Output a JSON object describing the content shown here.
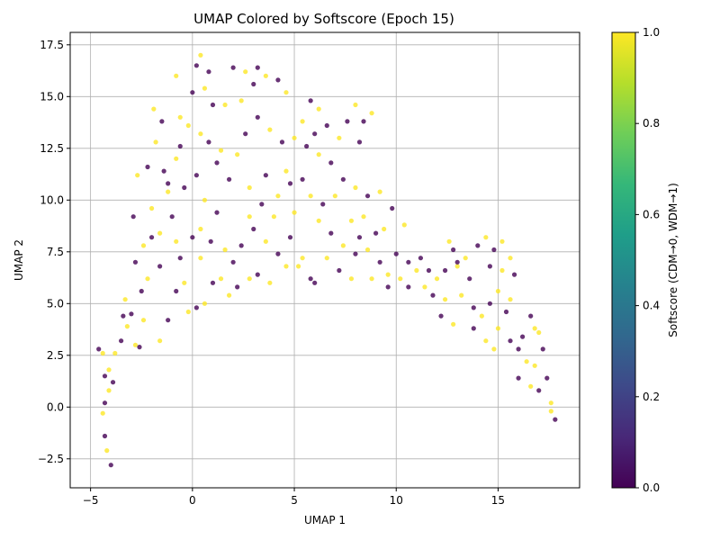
{
  "chart_data": {
    "type": "scatter",
    "title": "UMAP Colored by Softscore (Epoch 15)",
    "xlabel": "UMAP 1",
    "ylabel": "UMAP 2",
    "xlim": [
      -6,
      19
    ],
    "ylim": [
      -3.9,
      18.1
    ],
    "xticks": [
      -5,
      0,
      5,
      10,
      15
    ],
    "yticks": [
      -2.5,
      0.0,
      2.5,
      5.0,
      7.5,
      10.0,
      12.5,
      15.0,
      17.5
    ],
    "xtick_labels": [
      "−5",
      "0",
      "5",
      "10",
      "15"
    ],
    "ytick_labels": [
      "−2.5",
      "0.0",
      "2.5",
      "5.0",
      "7.5",
      "10.0",
      "12.5",
      "15.0",
      "17.5"
    ],
    "grid": true,
    "colorbar": {
      "label": "Softscore (CDM→0, WDM→1)",
      "range": [
        0.0,
        1.0
      ],
      "ticks": [
        0.0,
        0.2,
        0.4,
        0.6,
        0.8,
        1.0
      ],
      "tick_labels": [
        "0.0",
        "0.2",
        "0.4",
        "0.6",
        "0.8",
        "1.0"
      ],
      "colormap": "viridis",
      "colors": [
        "#440154",
        "#482878",
        "#3e4989",
        "#31688e",
        "#26828e",
        "#1f9e89",
        "#35b779",
        "#6ece58",
        "#b5de2b",
        "#fde725"
      ]
    },
    "marker_alpha": 0.8,
    "points": [
      [
        -4.6,
        2.8,
        0
      ],
      [
        -4.4,
        2.6,
        1
      ],
      [
        -4.3,
        1.5,
        0
      ],
      [
        -4.1,
        0.8,
        1
      ],
      [
        -4.3,
        0.2,
        0
      ],
      [
        -4.4,
        -0.3,
        1
      ],
      [
        -4.3,
        -1.4,
        0
      ],
      [
        -4.2,
        -2.1,
        1
      ],
      [
        -4.0,
        -2.8,
        0
      ],
      [
        -4.1,
        1.8,
        1
      ],
      [
        -3.9,
        1.2,
        0
      ],
      [
        -3.8,
        2.6,
        1
      ],
      [
        -3.5,
        3.2,
        0
      ],
      [
        -3.2,
        3.9,
        1
      ],
      [
        -3.0,
        4.5,
        0
      ],
      [
        -2.8,
        3.0,
        1
      ],
      [
        -2.6,
        2.9,
        0
      ],
      [
        -3.3,
        5.2,
        1
      ],
      [
        -2.5,
        5.6,
        0
      ],
      [
        -2.2,
        6.2,
        1
      ],
      [
        -2.8,
        7.0,
        0
      ],
      [
        -2.4,
        7.8,
        1
      ],
      [
        -2.0,
        8.2,
        0
      ],
      [
        -1.6,
        8.4,
        1
      ],
      [
        -2.9,
        9.2,
        0
      ],
      [
        -2.7,
        11.2,
        1
      ],
      [
        -2.2,
        11.6,
        0
      ],
      [
        -1.8,
        12.8,
        1
      ],
      [
        -1.5,
        13.8,
        0
      ],
      [
        -1.9,
        14.4,
        1
      ],
      [
        -1.4,
        11.4,
        0
      ],
      [
        -1.2,
        10.4,
        1
      ],
      [
        -1.0,
        9.2,
        0
      ],
      [
        -0.8,
        8.0,
        1
      ],
      [
        -0.6,
        7.2,
        0
      ],
      [
        -0.4,
        6.0,
        1
      ],
      [
        -1.2,
        4.2,
        0
      ],
      [
        -1.6,
        3.2,
        1
      ],
      [
        -0.8,
        5.6,
        0
      ],
      [
        -0.2,
        4.6,
        1
      ],
      [
        0.2,
        4.8,
        0
      ],
      [
        0.6,
        5.0,
        1
      ],
      [
        -0.6,
        12.6,
        0
      ],
      [
        -0.2,
        13.6,
        1
      ],
      [
        0.0,
        15.2,
        0
      ],
      [
        -0.8,
        16.0,
        1
      ],
      [
        0.2,
        16.5,
        0
      ],
      [
        0.4,
        17.0,
        1
      ],
      [
        0.8,
        16.2,
        0
      ],
      [
        0.6,
        15.4,
        1
      ],
      [
        1.0,
        14.6,
        0
      ],
      [
        0.4,
        13.2,
        1
      ],
      [
        0.8,
        12.8,
        0
      ],
      [
        1.4,
        12.4,
        1
      ],
      [
        0.2,
        11.2,
        0
      ],
      [
        0.6,
        10.0,
        1
      ],
      [
        1.2,
        9.4,
        0
      ],
      [
        0.4,
        8.6,
        1
      ],
      [
        0.9,
        8.0,
        0
      ],
      [
        1.6,
        7.6,
        1
      ],
      [
        2.0,
        7.0,
        0
      ],
      [
        1.4,
        6.2,
        1
      ],
      [
        2.2,
        5.8,
        0
      ],
      [
        2.8,
        6.2,
        1
      ],
      [
        1.8,
        11.0,
        0
      ],
      [
        2.2,
        12.2,
        1
      ],
      [
        2.6,
        13.2,
        0
      ],
      [
        1.6,
        14.6,
        1
      ],
      [
        2.0,
        16.4,
        0
      ],
      [
        2.6,
        16.2,
        1
      ],
      [
        3.2,
        16.4,
        0
      ],
      [
        3.6,
        16.0,
        1
      ],
      [
        4.2,
        15.8,
        0
      ],
      [
        4.6,
        15.2,
        1
      ],
      [
        3.2,
        14.0,
        0
      ],
      [
        3.8,
        13.4,
        1
      ],
      [
        4.4,
        12.8,
        0
      ],
      [
        2.8,
        10.6,
        1
      ],
      [
        3.4,
        9.8,
        0
      ],
      [
        4.0,
        9.2,
        1
      ],
      [
        3.0,
        8.6,
        0
      ],
      [
        3.6,
        8.0,
        1
      ],
      [
        4.2,
        7.4,
        0
      ],
      [
        4.6,
        6.8,
        1
      ],
      [
        3.2,
        6.4,
        0
      ],
      [
        3.8,
        6.0,
        1
      ],
      [
        4.8,
        8.2,
        0
      ],
      [
        5.0,
        9.4,
        1
      ],
      [
        4.8,
        10.8,
        0
      ],
      [
        4.6,
        11.4,
        1
      ],
      [
        5.4,
        11.0,
        0
      ],
      [
        5.4,
        7.2,
        1
      ],
      [
        5.8,
        6.2,
        0
      ],
      [
        5.2,
        6.8,
        1
      ],
      [
        5.6,
        12.6,
        0
      ],
      [
        5.4,
        13.8,
        1
      ],
      [
        5.8,
        14.8,
        0
      ],
      [
        6.2,
        14.4,
        1
      ],
      [
        6.6,
        13.6,
        0
      ],
      [
        6.2,
        12.2,
        1
      ],
      [
        6.8,
        11.8,
        0
      ],
      [
        5.8,
        10.2,
        1
      ],
      [
        6.4,
        9.8,
        0
      ],
      [
        7.0,
        10.2,
        1
      ],
      [
        7.4,
        11.0,
        0
      ],
      [
        6.2,
        9.0,
        1
      ],
      [
        6.8,
        8.4,
        0
      ],
      [
        7.4,
        7.8,
        1
      ],
      [
        8.0,
        7.4,
        0
      ],
      [
        6.6,
        7.2,
        1
      ],
      [
        7.2,
        6.6,
        0
      ],
      [
        7.8,
        6.2,
        1
      ],
      [
        6.0,
        6.0,
        0
      ],
      [
        7.2,
        13.0,
        1
      ],
      [
        7.6,
        13.8,
        0
      ],
      [
        8.0,
        14.6,
        1
      ],
      [
        8.4,
        13.8,
        0
      ],
      [
        8.8,
        14.2,
        1
      ],
      [
        8.2,
        12.8,
        0
      ],
      [
        8.0,
        10.6,
        1
      ],
      [
        8.6,
        10.2,
        0
      ],
      [
        8.4,
        9.2,
        1
      ],
      [
        9.0,
        8.4,
        0
      ],
      [
        8.6,
        7.6,
        1
      ],
      [
        9.2,
        7.0,
        0
      ],
      [
        8.8,
        6.2,
        1
      ],
      [
        9.6,
        5.8,
        0
      ],
      [
        9.4,
        8.6,
        1
      ],
      [
        9.8,
        9.6,
        0
      ],
      [
        9.2,
        10.4,
        1
      ],
      [
        10.0,
        7.4,
        0
      ],
      [
        10.2,
        6.2,
        1
      ],
      [
        10.6,
        5.8,
        0
      ],
      [
        11.0,
        6.6,
        1
      ],
      [
        11.2,
        7.2,
        0
      ],
      [
        10.4,
        8.8,
        1
      ],
      [
        11.6,
        6.6,
        0
      ],
      [
        12.0,
        6.2,
        1
      ],
      [
        11.8,
        5.4,
        0
      ],
      [
        12.4,
        5.2,
        1
      ],
      [
        12.2,
        4.4,
        0
      ],
      [
        12.8,
        4.0,
        1
      ],
      [
        12.4,
        6.6,
        0
      ],
      [
        13.0,
        6.8,
        1
      ],
      [
        12.8,
        7.6,
        0
      ],
      [
        13.4,
        7.2,
        1
      ],
      [
        13.6,
        6.2,
        0
      ],
      [
        13.2,
        5.4,
        1
      ],
      [
        13.8,
        4.8,
        0
      ],
      [
        14.2,
        4.4,
        1
      ],
      [
        13.8,
        3.8,
        0
      ],
      [
        14.4,
        3.2,
        1
      ],
      [
        14.0,
        7.8,
        0
      ],
      [
        14.4,
        8.2,
        1
      ],
      [
        14.8,
        7.6,
        0
      ],
      [
        15.2,
        8.0,
        1
      ],
      [
        14.6,
        6.8,
        0
      ],
      [
        15.0,
        5.6,
        1
      ],
      [
        15.4,
        4.6,
        0
      ],
      [
        15.0,
        3.8,
        1
      ],
      [
        15.6,
        3.2,
        0
      ],
      [
        15.2,
        6.6,
        1
      ],
      [
        15.8,
        6.4,
        0
      ],
      [
        15.6,
        7.2,
        1
      ],
      [
        16.0,
        2.8,
        0
      ],
      [
        16.4,
        2.2,
        1
      ],
      [
        16.0,
        1.4,
        0
      ],
      [
        16.6,
        1.0,
        1
      ],
      [
        17.0,
        0.8,
        0
      ],
      [
        16.8,
        2.0,
        1
      ],
      [
        17.2,
        2.8,
        0
      ],
      [
        17.0,
        3.6,
        1
      ],
      [
        16.6,
        4.4,
        0
      ],
      [
        16.8,
        3.8,
        1
      ],
      [
        17.4,
        1.4,
        0
      ],
      [
        17.6,
        0.2,
        1
      ],
      [
        17.8,
        -0.6,
        0
      ],
      [
        17.6,
        -0.2,
        1
      ],
      [
        13.0,
        7.0,
        0
      ],
      [
        12.6,
        8.0,
        1
      ],
      [
        0.0,
        8.2,
        0
      ],
      [
        0.4,
        7.2,
        1
      ],
      [
        1.0,
        6.0,
        0
      ],
      [
        1.8,
        5.4,
        1
      ],
      [
        2.4,
        7.8,
        0
      ],
      [
        2.8,
        9.2,
        1
      ],
      [
        3.6,
        11.2,
        0
      ],
      [
        4.2,
        10.2,
        1
      ],
      [
        -0.4,
        10.6,
        0
      ],
      [
        -0.6,
        14.0,
        1
      ],
      [
        1.2,
        11.8,
        0
      ],
      [
        2.4,
        14.8,
        1
      ],
      [
        3.0,
        15.6,
        0
      ],
      [
        5.0,
        13.0,
        1
      ],
      [
        6.0,
        13.2,
        0
      ],
      [
        7.8,
        9.0,
        1
      ],
      [
        8.2,
        8.2,
        0
      ],
      [
        9.6,
        6.4,
        1
      ],
      [
        10.6,
        7.0,
        0
      ],
      [
        11.4,
        5.8,
        1
      ],
      [
        14.6,
        5.0,
        0
      ],
      [
        15.6,
        5.2,
        1
      ],
      [
        16.2,
        3.4,
        0
      ],
      [
        14.8,
        2.8,
        1
      ],
      [
        -3.4,
        4.4,
        0
      ],
      [
        -2.4,
        4.2,
        1
      ],
      [
        -1.6,
        6.8,
        0
      ],
      [
        -2.0,
        9.6,
        1
      ],
      [
        -1.2,
        10.8,
        0
      ],
      [
        -0.8,
        12.0,
        1
      ]
    ]
  }
}
